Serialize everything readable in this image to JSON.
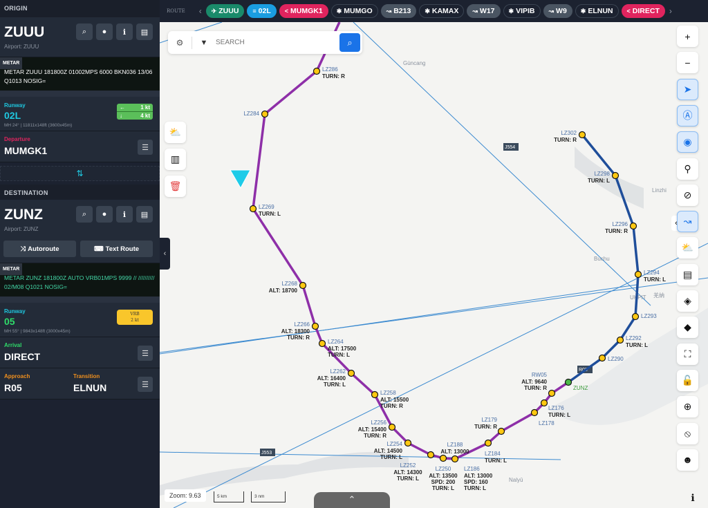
{
  "origin": {
    "header": "ORIGIN",
    "code": "ZUUU",
    "airport": "Airport: ZUUU",
    "metar_tag": "METAR",
    "metar": "METAR ZUUU 181800Z 01002MPS 6000 BKN036 13/06 Q1013 NOSIG=",
    "runway_label": "Runway",
    "runway": "02L",
    "runway_info": "MH 24° | 11811x148ft (3600x45m)",
    "wind": [
      {
        "icon": "arrow-left",
        "value": "1",
        "unit": "kt"
      },
      {
        "icon": "arrow-down",
        "value": "4",
        "unit": "kt"
      }
    ],
    "departure_label": "Departure",
    "departure": "MUMGK1"
  },
  "swap_icon": "⇅",
  "destination": {
    "header": "DESTINATION",
    "code": "ZUNZ",
    "airport": "Airport: ZUNZ",
    "autoroute": "Autoroute",
    "textroute": "Text Route",
    "metar_tag": "METAR",
    "metar": "METAR ZUNZ 181800Z AUTO VRB01MPS 9999 // ////////// 02/M08 Q1021 NOSIG=",
    "runway_label": "Runway",
    "runway": "05",
    "runway_info": "MH 55° | 9843x148ft (3000x45m)",
    "wind_top": "VRB",
    "wind_bottom": "2 kt",
    "arrival_label": "Arrival",
    "arrival": "DIRECT",
    "approach_label": "Approach",
    "approach": "R05",
    "transition_label": "Transition",
    "transition": "ELNUN"
  },
  "route": {
    "label": "ROUTE",
    "chips": [
      {
        "text": "ZUUU",
        "icon": "takeoff",
        "color": "#1a8a6a"
      },
      {
        "text": "02L",
        "icon": "runway",
        "color": "#1a9de0"
      },
      {
        "text": "MUMGK1",
        "icon": "sid",
        "color": "#e0245e"
      },
      {
        "text": "MUMGO",
        "icon": "fix",
        "color": "#1c2230"
      },
      {
        "text": "B213",
        "icon": "airway",
        "color": "#4a5562"
      },
      {
        "text": "KAMAX",
        "icon": "fix",
        "color": "#1c2230"
      },
      {
        "text": "W17",
        "icon": "airway",
        "color": "#4a5562"
      },
      {
        "text": "VIPIB",
        "icon": "fix",
        "color": "#1c2230"
      },
      {
        "text": "W9",
        "icon": "airway",
        "color": "#4a5562"
      },
      {
        "text": "ELNUN",
        "icon": "fix",
        "color": "#1c2230"
      },
      {
        "text": "DIRECT",
        "icon": "sid",
        "color": "#e0245e"
      }
    ]
  },
  "search": {
    "placeholder": "SEARCH"
  },
  "map": {
    "zoom": "Zoom: 9.63",
    "scale_km": "5 km",
    "scale_nm": "3 nm",
    "places": [
      "Gùncang",
      "Linzhi",
      "Buchu",
      "UKPIT",
      "羌纳",
      "Nalyū"
    ],
    "airways": [
      "J554",
      "J553",
      "R05"
    ],
    "route_color": "#8e2fa8",
    "approach_color": "#1f4e9a",
    "aircraft_color": "#1ecbe8",
    "waypoints": [
      {
        "name": "LZ286",
        "lines": [
          "TURN: R"
        ]
      },
      {
        "name": "LZ284",
        "lines": []
      },
      {
        "name": "LZ269",
        "lines": [
          "TURN: L"
        ]
      },
      {
        "name": "LZ268",
        "lines": [
          "ALT: 18700"
        ]
      },
      {
        "name": "LZ266",
        "lines": [
          "ALT: 18300",
          "TURN: R"
        ]
      },
      {
        "name": "LZ264",
        "lines": [
          "ALT: 17500",
          "TURN: L"
        ]
      },
      {
        "name": "LZ262",
        "lines": [
          "ALT: 16400",
          "TURN: L"
        ]
      },
      {
        "name": "LZ258",
        "lines": [
          "ALT: 15500",
          "TURN: R"
        ]
      },
      {
        "name": "LZ256",
        "lines": [
          "ALT: 15400",
          "TURN: R"
        ]
      },
      {
        "name": "LZ254",
        "lines": [
          "ALT: 14500",
          "TURN: L"
        ]
      },
      {
        "name": "LZ252",
        "lines": [
          "ALT: 14300",
          "TURN: L"
        ]
      },
      {
        "name": "LZ250",
        "lines": [
          "ALT: 13500",
          "SPD: 200",
          "TURN: L"
        ]
      },
      {
        "name": "LZ188",
        "lines": [
          "ALT: 13000"
        ]
      },
      {
        "name": "LZ186",
        "lines": [
          "ALT: 13000",
          "SPD: 160",
          "TURN: L"
        ]
      },
      {
        "name": "LZ184",
        "lines": [
          "TURN: L"
        ]
      },
      {
        "name": "LZ179",
        "lines": [
          "TURN: R"
        ]
      },
      {
        "name": "LZ178",
        "lines": []
      },
      {
        "name": "LZ176",
        "lines": [
          "TURN: L"
        ]
      },
      {
        "name": "RW05",
        "lines": [
          "ALT: 9640",
          "TURN: R"
        ]
      },
      {
        "name": "ZUNZ",
        "lines": []
      },
      {
        "name": "LZ290",
        "lines": []
      },
      {
        "name": "LZ292",
        "lines": [
          "TURN: L"
        ]
      },
      {
        "name": "LZ293",
        "lines": []
      },
      {
        "name": "LZ294",
        "lines": [
          "TURN: L"
        ]
      },
      {
        "name": "LZ296",
        "lines": [
          "TURN: R"
        ]
      },
      {
        "name": "LZ298",
        "lines": [
          "TURN: L"
        ]
      },
      {
        "name": "LZ302",
        "lines": [
          "TURN: R"
        ]
      }
    ]
  },
  "toolbar": {
    "right": [
      "zoom-in",
      "zoom-out",
      "navigate",
      "tower",
      "track",
      "marker",
      "restrict",
      "route",
      "weather",
      "clipboard",
      "layers",
      "compass",
      "fullscreen",
      "lock-open",
      "crosshair",
      "compass-needle",
      "user",
      "info"
    ]
  }
}
